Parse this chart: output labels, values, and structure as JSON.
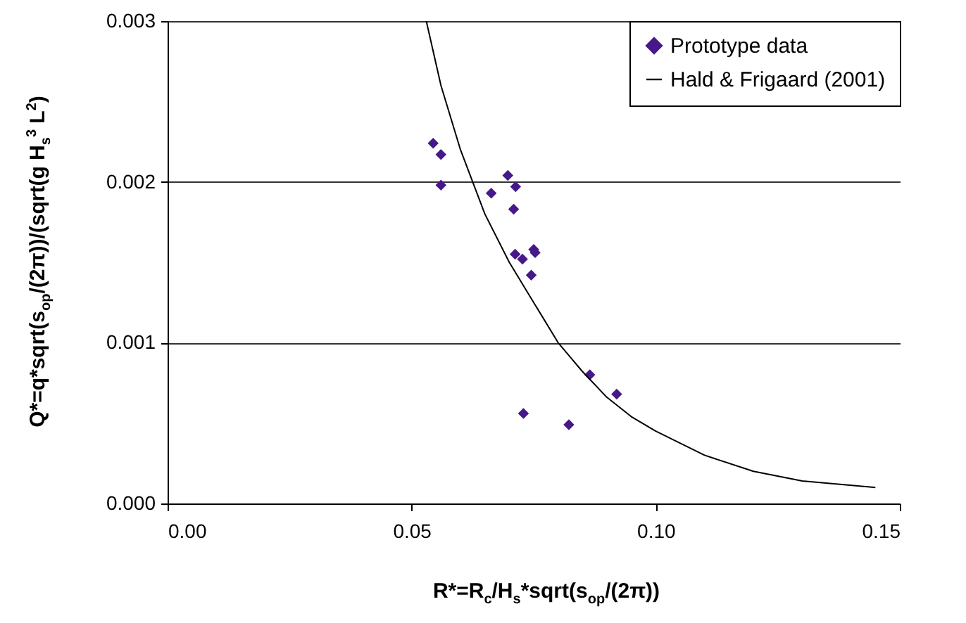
{
  "chart_data": {
    "type": "scatter",
    "xlabel": "R*=R$_{c}$/H$_{s}$*sqrt(s$_{op}$/(2π))",
    "ylabel": "Q*=q*sqrt(s$_{op}$/(2π))/(sqrt(g H$_{s}$$^{3}$ L$^{2}$)",
    "xlim": [
      0,
      0.15
    ],
    "xticks": [
      {
        "value": 0,
        "label": "0.00"
      },
      0.05,
      {
        "value": 0.1,
        "label": "0.10"
      },
      0.15
    ],
    "ylim": [
      0,
      0.003
    ],
    "yticks": [
      {
        "value": 0,
        "label": "0.000"
      },
      0.001,
      0.002,
      0.003
    ],
    "grid": "y",
    "legend": "top right",
    "series": [
      {
        "name": "Prototype data",
        "marker": "diamond",
        "color": "#46198a",
        "x": [
          0.0544,
          0.056,
          0.056,
          0.0663,
          0.0697,
          0.0713,
          0.0709,
          0.0712,
          0.0727,
          0.075,
          0.0753,
          0.0745,
          0.0729,
          0.0822,
          0.0865,
          0.092
        ],
        "values": [
          0.00224,
          0.00217,
          0.00198,
          0.00193,
          0.00204,
          0.00197,
          0.00183,
          0.00155,
          0.00152,
          0.00158,
          0.00156,
          0.00142,
          0.00056,
          0.00049,
          0.0008,
          0.00068
        ]
      },
      {
        "name": "Hald & Frigaard (2001)",
        "type": "line",
        "marker": "none",
        "color": "#000000",
        "line_style": "solid",
        "x": [
          0.053,
          0.056,
          0.06,
          0.065,
          0.07,
          0.075,
          0.08,
          0.085,
          0.09,
          0.095,
          0.1,
          0.11,
          0.12,
          0.13,
          0.145
        ],
        "values": [
          0.003,
          0.0026,
          0.0022,
          0.0018,
          0.0015,
          0.00125,
          0.001,
          0.00082,
          0.00066,
          0.00054,
          0.00045,
          0.0003,
          0.0002,
          0.00014,
          0.0001
        ]
      }
    ]
  }
}
